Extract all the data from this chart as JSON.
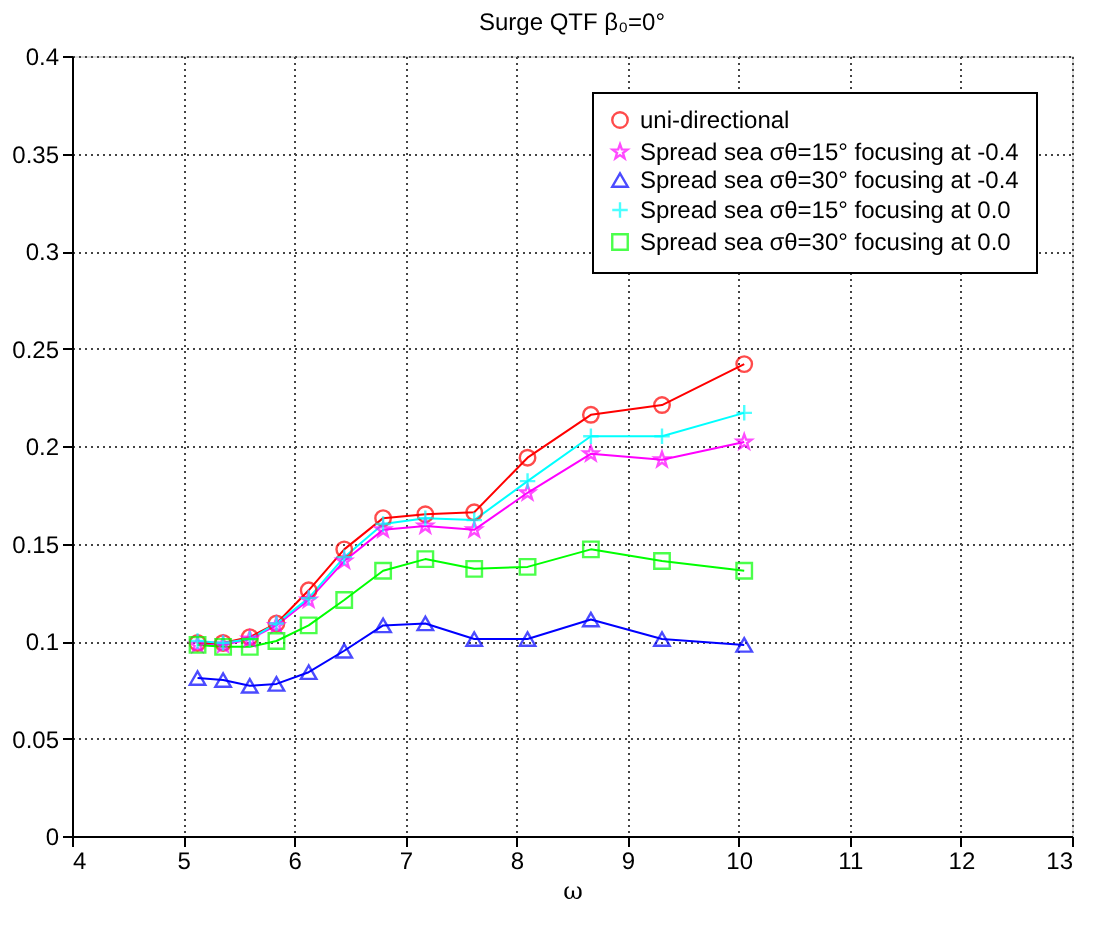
{
  "chart_data": {
    "type": "line",
    "title": "Surge QTF   β₀=0°",
    "xlabel": "ω",
    "x": [
      5.13,
      5.36,
      5.6,
      5.84,
      6.13,
      6.45,
      6.8,
      7.18,
      7.62,
      8.1,
      8.67,
      9.31,
      10.05
    ],
    "series": [
      {
        "name": "uni-directional",
        "color": "#ff0000",
        "marker": "circle",
        "values": [
          0.099,
          0.099,
          0.102,
          0.109,
          0.126,
          0.147,
          0.163,
          0.165,
          0.166,
          0.194,
          0.216,
          0.221,
          0.242
        ]
      },
      {
        "name": "Spread sea σθ=15° focusing at -0.4",
        "color": "#ff00ff",
        "marker": "star",
        "values": [
          0.098,
          0.098,
          0.101,
          0.108,
          0.121,
          0.141,
          0.157,
          0.159,
          0.157,
          0.176,
          0.196,
          0.193,
          0.202
        ]
      },
      {
        "name": "Spread sea σθ=30° focusing at -0.4",
        "color": "#0000ff",
        "marker": "triangle",
        "values": [
          0.081,
          0.08,
          0.077,
          0.078,
          0.084,
          0.095,
          0.108,
          0.109,
          0.101,
          0.101,
          0.111,
          0.101,
          0.098
        ]
      },
      {
        "name": "Spread sea σθ=15° focusing at 0.0",
        "color": "#00ffff",
        "marker": "cross",
        "values": [
          0.1,
          0.099,
          0.101,
          0.109,
          0.122,
          0.143,
          0.16,
          0.163,
          0.162,
          0.182,
          0.205,
          0.205,
          0.217
        ]
      },
      {
        "name": "Spread sea σθ=30° focusing at 0.0",
        "color": "#00ff00",
        "marker": "square",
        "values": [
          0.098,
          0.097,
          0.097,
          0.1,
          0.108,
          0.121,
          0.136,
          0.142,
          0.137,
          0.138,
          0.147,
          0.141,
          0.136
        ]
      }
    ],
    "xlim": [
      4,
      13
    ],
    "xticks": [
      4,
      5,
      6,
      7,
      8,
      9,
      10,
      11,
      12,
      13
    ],
    "ylim": [
      0,
      0.4
    ],
    "yticks": [
      0,
      0.05,
      0.1,
      0.15,
      0.2,
      0.25,
      0.3,
      0.35,
      0.4
    ],
    "grid": true,
    "legend": "top right",
    "line_style": "solid"
  }
}
